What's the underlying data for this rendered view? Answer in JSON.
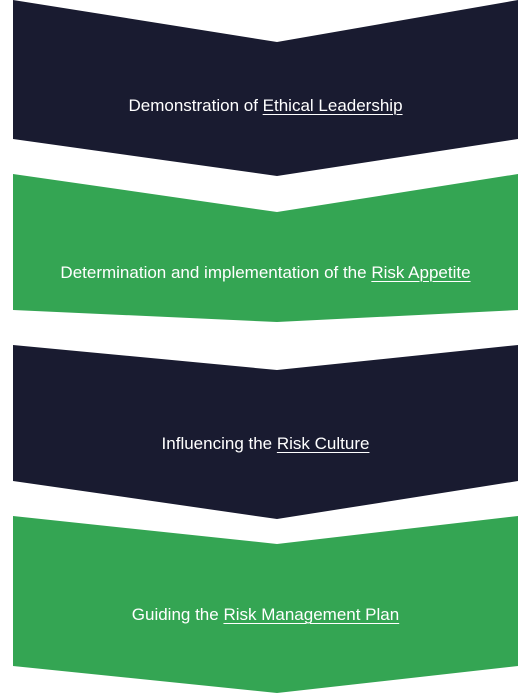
{
  "colors": {
    "navy": "#191b30",
    "green": "#34a553",
    "text": "#ffffff"
  },
  "steps": [
    {
      "prefix": "Demonstration of ",
      "link": "Ethical Leadership",
      "color": "navy"
    },
    {
      "prefix": "Determination and implementation of the ",
      "link": "Risk Appetite",
      "color": "green"
    },
    {
      "prefix": "Influencing the ",
      "link": "Risk Culture",
      "color": "navy"
    },
    {
      "prefix": "Guiding the ",
      "link": "Risk Management Plan",
      "color": "green"
    }
  ]
}
